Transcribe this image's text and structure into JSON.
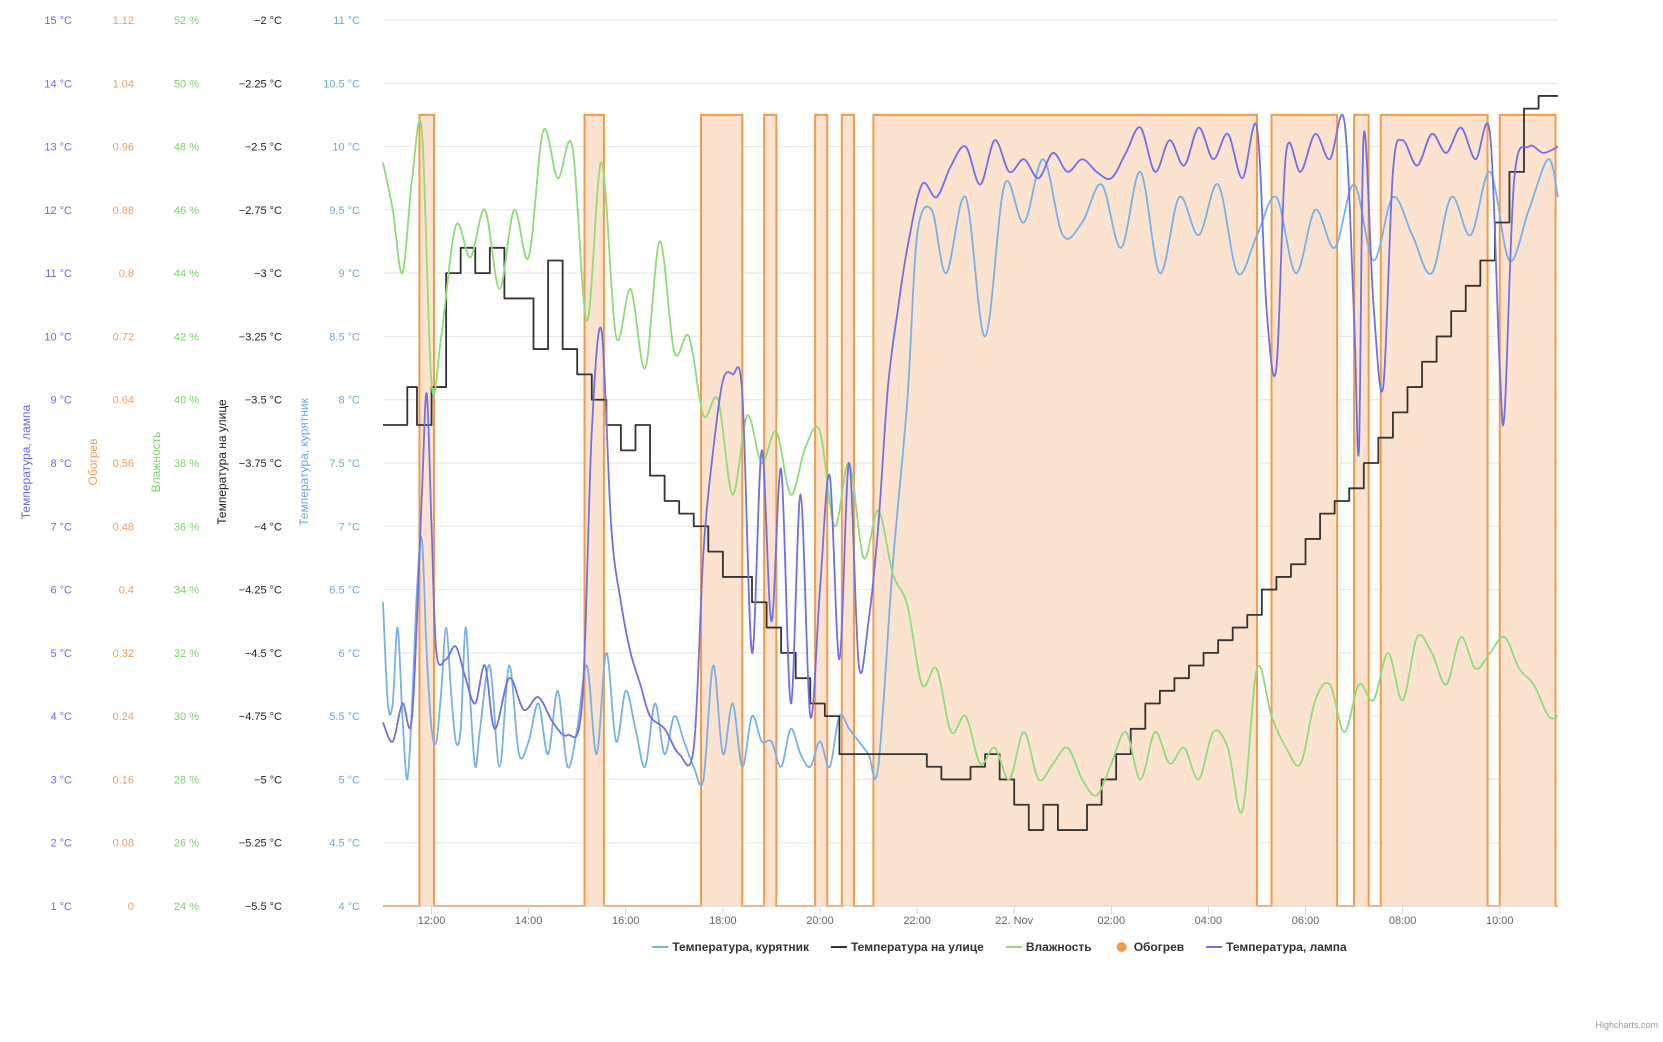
{
  "credits": "Highcharts.com",
  "chart_data": {
    "type": "line",
    "x_axis": {
      "tick_labels": [
        "12:00",
        "14:00",
        "16:00",
        "18:00",
        "20:00",
        "22:00",
        "22. Nov",
        "02:00",
        "04:00",
        "06:00",
        "08:00",
        "10:00"
      ],
      "range_hours": [
        11.0,
        35.2
      ],
      "tick_hours": [
        12,
        14,
        16,
        18,
        20,
        22,
        24,
        26,
        28,
        30,
        32,
        34
      ]
    },
    "y_axes": [
      {
        "id": "lamp",
        "title": "Температура, лампа",
        "color": "#6a6af0",
        "ticks": [
          "15 °C",
          "14 °C",
          "13 °C",
          "12 °C",
          "11 °C",
          "10 °C",
          "9 °C",
          "8 °C",
          "7 °C",
          "6 °C",
          "5 °C",
          "4 °C",
          "3 °C",
          "2 °C",
          "1 °C"
        ],
        "min": 1,
        "max": 15
      },
      {
        "id": "heat",
        "title": "Обогрев",
        "color": "#f0a060",
        "ticks": [
          "1.12",
          "1.04",
          "0.96",
          "0.88",
          "0.8",
          "0.72",
          "0.64",
          "0.56",
          "0.48",
          "0.4",
          "0.32",
          "0.24",
          "0.16",
          "0.08",
          "0"
        ],
        "min": 0,
        "max": 1.12
      },
      {
        "id": "hum",
        "title": "Влажность",
        "color": "#7ad46b",
        "ticks": [
          "52 %",
          "50 %",
          "48 %",
          "46 %",
          "44 %",
          "42 %",
          "40 %",
          "38 %",
          "36 %",
          "34 %",
          "32 %",
          "30 %",
          "28 %",
          "26 %",
          "24 %"
        ],
        "min": 24,
        "max": 52
      },
      {
        "id": "out",
        "title": "Температура на улице",
        "color": "#222222",
        "ticks": [
          "−2 °C",
          "−2.25 °C",
          "−2.5 °C",
          "−2.75 °C",
          "−3 °C",
          "−3.25 °C",
          "−3.5 °C",
          "−3.75 °C",
          "−4 °C",
          "−4.25 °C",
          "−4.5 °C",
          "−4.75 °C",
          "−5 °C",
          "−5.25 °C",
          "−5.5 °C"
        ],
        "min": -5.5,
        "max": -2
      },
      {
        "id": "coop",
        "title": "Температура, курятник",
        "color": "#6fa8dc",
        "ticks": [
          "11 °C",
          "10.5 °C",
          "10 °C",
          "9.5 °C",
          "9 °C",
          "8.5 °C",
          "8 °C",
          "7.5 °C",
          "7 °C",
          "6.5 °C",
          "6 °C",
          "5.5 °C",
          "5 °C",
          "4.5 °C",
          "4 °C"
        ],
        "min": 4,
        "max": 11
      }
    ],
    "series": [
      {
        "name": "Температура, курятник",
        "axis": "coop",
        "color": "#78b0e8",
        "legend_symbol": "line",
        "x": [
          11.0,
          11.1,
          11.2,
          11.3,
          11.4,
          11.5,
          11.6,
          11.7,
          11.8,
          11.9,
          12.0,
          12.1,
          12.2,
          12.3,
          12.4,
          12.5,
          12.6,
          12.7,
          12.8,
          12.9,
          13.0,
          13.2,
          13.4,
          13.6,
          13.8,
          14.0,
          14.2,
          14.4,
          14.6,
          14.8,
          15.0,
          15.2,
          15.4,
          15.6,
          15.8,
          16.0,
          16.2,
          16.4,
          16.6,
          16.8,
          17.0,
          17.2,
          17.4,
          17.6,
          17.8,
          18.0,
          18.2,
          18.4,
          18.6,
          18.8,
          19.0,
          19.2,
          19.4,
          19.6,
          19.8,
          20.0,
          20.2,
          20.4,
          20.6,
          20.8,
          21.0,
          21.2,
          21.5,
          21.8,
          22.0,
          22.3,
          22.6,
          23.0,
          23.4,
          23.8,
          24.2,
          24.6,
          25.0,
          25.4,
          25.8,
          26.2,
          26.6,
          27.0,
          27.4,
          27.8,
          28.2,
          28.6,
          29.0,
          29.4,
          29.8,
          30.2,
          30.6,
          31.0,
          31.4,
          31.8,
          32.2,
          32.6,
          33.0,
          33.4,
          33.8,
          34.2,
          34.6,
          35.0,
          35.2
        ],
        "y": [
          6.4,
          5.6,
          5.6,
          6.2,
          5.5,
          5.0,
          5.6,
          6.5,
          6.9,
          6.0,
          5.4,
          5.3,
          5.7,
          6.2,
          5.7,
          5.3,
          5.4,
          6.2,
          5.6,
          5.1,
          5.4,
          5.9,
          5.1,
          5.9,
          5.2,
          5.3,
          5.6,
          5.2,
          5.7,
          5.1,
          5.4,
          5.9,
          5.2,
          6.0,
          5.3,
          5.7,
          5.4,
          5.1,
          5.6,
          5.2,
          5.5,
          5.3,
          5.1,
          5.0,
          5.9,
          5.2,
          5.6,
          5.1,
          5.5,
          5.3,
          5.3,
          5.1,
          5.4,
          5.2,
          5.1,
          5.3,
          5.1,
          5.5,
          5.4,
          5.3,
          5.2,
          5.1,
          6.7,
          8.0,
          9.3,
          9.5,
          9.0,
          9.6,
          8.5,
          9.7,
          9.4,
          9.9,
          9.3,
          9.4,
          9.7,
          9.2,
          9.8,
          9.0,
          9.6,
          9.3,
          9.7,
          9.0,
          9.3,
          9.6,
          9.0,
          9.5,
          9.2,
          9.7,
          9.1,
          9.6,
          9.3,
          9.0,
          9.6,
          9.3,
          9.8,
          9.1,
          9.5,
          9.9,
          9.6
        ]
      },
      {
        "name": "Температура на улице",
        "axis": "out",
        "color": "#333333",
        "legend_symbol": "line",
        "x": [
          11.0,
          11.3,
          11.5,
          11.7,
          12.0,
          12.3,
          12.6,
          12.9,
          13.2,
          13.5,
          13.8,
          14.1,
          14.4,
          14.7,
          15.0,
          15.3,
          15.6,
          15.9,
          16.2,
          16.5,
          16.8,
          17.1,
          17.4,
          17.7,
          18.0,
          18.3,
          18.6,
          18.9,
          19.2,
          19.5,
          19.8,
          20.1,
          20.4,
          20.7,
          21.0,
          21.3,
          21.6,
          21.9,
          22.2,
          22.5,
          22.8,
          23.1,
          23.4,
          23.7,
          24.0,
          24.3,
          24.6,
          24.9,
          25.2,
          25.5,
          25.8,
          26.1,
          26.4,
          26.7,
          27.0,
          27.3,
          27.6,
          27.9,
          28.2,
          28.5,
          28.8,
          29.1,
          29.4,
          29.7,
          30.0,
          30.3,
          30.6,
          30.9,
          31.2,
          31.5,
          31.8,
          32.1,
          32.4,
          32.7,
          33.0,
          33.3,
          33.6,
          33.9,
          34.2,
          34.5,
          34.8,
          35.0,
          35.2
        ],
        "y": [
          -3.6,
          -3.6,
          -3.45,
          -3.6,
          -3.45,
          -3.0,
          -2.9,
          -3.0,
          -2.9,
          -3.1,
          -3.1,
          -3.3,
          -2.95,
          -3.3,
          -3.4,
          -3.5,
          -3.6,
          -3.7,
          -3.6,
          -3.8,
          -3.9,
          -3.95,
          -4.0,
          -4.1,
          -4.2,
          -4.2,
          -4.3,
          -4.4,
          -4.5,
          -4.6,
          -4.7,
          -4.75,
          -4.9,
          -4.9,
          -4.9,
          -4.9,
          -4.9,
          -4.9,
          -4.95,
          -5.0,
          -5.0,
          -4.95,
          -4.9,
          -5.0,
          -5.1,
          -5.2,
          -5.1,
          -5.2,
          -5.2,
          -5.1,
          -5.0,
          -4.9,
          -4.8,
          -4.7,
          -4.65,
          -4.6,
          -4.55,
          -4.5,
          -4.45,
          -4.4,
          -4.35,
          -4.25,
          -4.2,
          -4.15,
          -4.05,
          -3.95,
          -3.9,
          -3.85,
          -3.75,
          -3.65,
          -3.55,
          -3.45,
          -3.35,
          -3.25,
          -3.15,
          -3.05,
          -2.95,
          -2.8,
          -2.6,
          -2.35,
          -2.3,
          -2.3,
          -2.3
        ]
      },
      {
        "name": "Влажность",
        "axis": "hum",
        "color": "#8fdc7a",
        "legend_symbol": "line",
        "x": [
          11.0,
          11.2,
          11.4,
          11.6,
          11.8,
          12.0,
          12.2,
          12.5,
          12.8,
          13.1,
          13.4,
          13.7,
          14.0,
          14.3,
          14.6,
          14.9,
          15.2,
          15.5,
          15.8,
          16.1,
          16.4,
          16.7,
          17.0,
          17.3,
          17.6,
          17.9,
          18.2,
          18.5,
          18.8,
          19.1,
          19.4,
          19.7,
          20.0,
          20.3,
          20.6,
          20.9,
          21.2,
          21.5,
          21.8,
          22.1,
          22.4,
          22.7,
          23.0,
          23.3,
          23.6,
          23.9,
          24.2,
          24.5,
          24.8,
          25.1,
          25.4,
          25.7,
          26.0,
          26.3,
          26.6,
          26.9,
          27.2,
          27.5,
          27.8,
          28.1,
          28.4,
          28.7,
          29.0,
          29.3,
          29.6,
          29.9,
          30.2,
          30.5,
          30.8,
          31.1,
          31.4,
          31.7,
          32.0,
          32.3,
          32.6,
          32.9,
          33.2,
          33.5,
          33.8,
          34.1,
          34.4,
          34.7,
          35.0,
          35.2
        ],
        "y": [
          47.5,
          46.0,
          44.0,
          47.0,
          48.5,
          40.5,
          42.0,
          45.5,
          44.5,
          46.0,
          43.5,
          46.0,
          44.5,
          48.5,
          47.0,
          48.0,
          42.5,
          47.5,
          42.0,
          43.5,
          41.0,
          45.0,
          41.5,
          42.0,
          39.5,
          40.0,
          37.0,
          39.5,
          38.0,
          39.0,
          37.0,
          38.5,
          39.0,
          36.0,
          38.0,
          35.0,
          36.5,
          34.5,
          33.5,
          31.0,
          31.5,
          29.5,
          30.0,
          28.5,
          29.0,
          28.0,
          29.5,
          28.0,
          28.5,
          29.0,
          28.0,
          27.5,
          28.5,
          29.5,
          28.0,
          29.5,
          28.5,
          29.0,
          28.0,
          29.5,
          29.0,
          27.0,
          31.5,
          30.0,
          29.0,
          28.5,
          30.5,
          31.0,
          29.5,
          31.0,
          30.5,
          32.0,
          30.5,
          32.5,
          32.0,
          31.0,
          32.5,
          31.5,
          32.0,
          32.5,
          31.5,
          31.0,
          30.0,
          30.0
        ]
      },
      {
        "name": "Обогрев",
        "axis": "heat",
        "color": "#f59a4a",
        "fill": "#fbe3d0",
        "legend_symbol": "circle",
        "on_intervals": [
          [
            11.75,
            12.05
          ],
          [
            15.15,
            15.55
          ],
          [
            17.55,
            18.4
          ],
          [
            18.85,
            19.1
          ],
          [
            19.9,
            20.15
          ],
          [
            20.45,
            20.7
          ],
          [
            21.1,
            29.0
          ],
          [
            29.3,
            30.65
          ],
          [
            31.0,
            31.3
          ],
          [
            31.55,
            33.75
          ],
          [
            34.0,
            35.15
          ]
        ],
        "on_value": 1.0,
        "off_value": 0.0
      },
      {
        "name": "Температура, лампа",
        "axis": "lamp",
        "color": "#7070e6",
        "legend_symbol": "line",
        "x": [
          11.0,
          11.2,
          11.4,
          11.6,
          11.8,
          11.9,
          12.0,
          12.1,
          12.3,
          12.5,
          12.7,
          12.9,
          13.1,
          13.3,
          13.6,
          13.9,
          14.2,
          14.5,
          14.8,
          15.1,
          15.3,
          15.5,
          15.7,
          15.9,
          16.1,
          16.3,
          16.5,
          16.8,
          17.1,
          17.4,
          17.6,
          17.8,
          18.0,
          18.2,
          18.4,
          18.6,
          18.8,
          19.0,
          19.2,
          19.4,
          19.6,
          19.8,
          20.0,
          20.2,
          20.4,
          20.6,
          20.8,
          21.0,
          21.2,
          21.4,
          21.6,
          21.8,
          22.1,
          22.4,
          22.7,
          23.0,
          23.3,
          23.6,
          23.9,
          24.2,
          24.5,
          24.8,
          25.1,
          25.4,
          25.7,
          26.0,
          26.3,
          26.6,
          26.9,
          27.2,
          27.5,
          27.8,
          28.1,
          28.4,
          28.7,
          29.0,
          29.2,
          29.4,
          29.6,
          29.9,
          30.2,
          30.5,
          30.8,
          31.0,
          31.1,
          31.2,
          31.4,
          31.6,
          31.8,
          32.0,
          32.3,
          32.6,
          32.9,
          33.2,
          33.5,
          33.8,
          34.0,
          34.1,
          34.3,
          34.6,
          34.9,
          35.2
        ],
        "y": [
          3.9,
          3.6,
          4.2,
          4.0,
          7.5,
          9.1,
          7.0,
          5.0,
          4.9,
          5.1,
          4.6,
          4.2,
          4.8,
          3.8,
          4.6,
          4.1,
          4.3,
          3.9,
          3.7,
          4.2,
          8.5,
          10.1,
          7.0,
          5.8,
          5.0,
          4.5,
          4.0,
          3.8,
          3.4,
          3.5,
          6.6,
          8.2,
          9.3,
          9.4,
          9.1,
          5.0,
          8.2,
          5.5,
          7.9,
          4.2,
          7.5,
          4.0,
          6.0,
          7.8,
          4.9,
          8.0,
          4.8,
          5.5,
          7.0,
          9.2,
          10.4,
          11.4,
          12.4,
          12.2,
          12.7,
          13.0,
          12.4,
          13.1,
          12.6,
          12.8,
          12.5,
          12.9,
          12.6,
          12.8,
          12.6,
          12.5,
          12.9,
          13.3,
          12.6,
          13.1,
          12.7,
          13.3,
          12.8,
          13.2,
          12.5,
          13.3,
          10.4,
          9.5,
          12.9,
          12.6,
          13.2,
          12.8,
          13.4,
          10.3,
          8.2,
          13.2,
          10.5,
          9.2,
          12.6,
          13.1,
          12.7,
          13.2,
          12.9,
          13.3,
          12.8,
          13.2,
          9.5,
          8.8,
          12.5,
          13.0,
          12.9,
          13.0
        ]
      }
    ]
  }
}
